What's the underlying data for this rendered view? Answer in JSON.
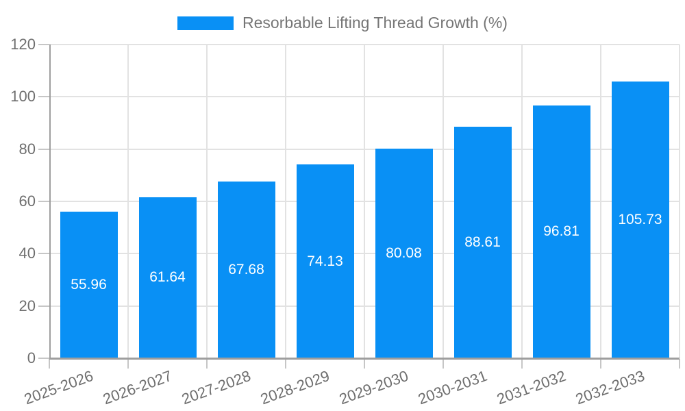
{
  "chart_data": {
    "type": "bar",
    "title": "Resorbable Lifting Thread Growth (%)",
    "categories": [
      "2025-2026",
      "2026-2027",
      "2027-2028",
      "2028-2029",
      "2029-2030",
      "2030-2031",
      "2031-2032",
      "2032-2033"
    ],
    "values": [
      55.96,
      61.64,
      67.68,
      74.13,
      80.08,
      88.61,
      96.81,
      105.73
    ],
    "value_labels": [
      "55.96",
      "61.64",
      "67.68",
      "74.13",
      "80.08",
      "88.61",
      "96.81",
      "105.73"
    ],
    "xlabel": "",
    "ylabel": "",
    "ylim": [
      0,
      120
    ],
    "yticks": [
      0,
      20,
      40,
      60,
      80,
      100,
      120
    ],
    "grid": true,
    "legend_position": "top center",
    "legend_entries": [
      "Resorbable Lifting Thread Growth (%)"
    ],
    "x_label_rotation_deg": -20,
    "bar_value_label_position": "center of bar"
  },
  "colors": {
    "bar": "#0990f5",
    "axis_line": "#9e9e9e",
    "gridline": "#e2e2e2",
    "tick_mark": "#c6c6c6",
    "axis_text": "#6e6e6e",
    "legend_text": "#757575",
    "bar_label_text": "#ffffff",
    "background": "#ffffff"
  }
}
